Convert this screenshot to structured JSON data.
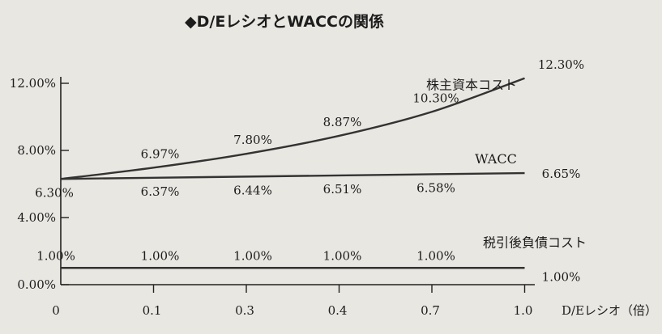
{
  "chart_data": {
    "type": "line",
    "title": "◆D/EレシオとWACCの関係",
    "xlabel": "D/Eレシオ（倍）",
    "ylabel": "",
    "categories": [
      "0",
      "0.1",
      "0.3",
      "0.4",
      "0.7",
      "1.0"
    ],
    "x": [
      0,
      0.1,
      0.3,
      0.4,
      0.7,
      1.0
    ],
    "ylim": [
      0,
      12
    ],
    "yticks": [
      "0.00%",
      "4.00%",
      "8.00%",
      "12.00%"
    ],
    "grid": false,
    "series": [
      {
        "name": "株主資本コスト",
        "values": [
          6.3,
          6.97,
          7.8,
          8.87,
          10.3,
          12.3
        ],
        "labels": [
          "",
          "6.97%",
          "7.80%",
          "8.87%",
          "10.30%",
          "12.30%"
        ],
        "color": "#333333"
      },
      {
        "name": "WACC",
        "values": [
          6.3,
          6.37,
          6.44,
          6.51,
          6.58,
          6.65
        ],
        "labels": [
          "6.30%",
          "6.37%",
          "6.44%",
          "6.51%",
          "6.58%",
          "6.65%"
        ],
        "color": "#333333"
      },
      {
        "name": "税引後負債コスト",
        "values": [
          1.0,
          1.0,
          1.0,
          1.0,
          1.0,
          1.0
        ],
        "labels": [
          "1.00%",
          "1.00%",
          "1.00%",
          "1.00%",
          "1.00%",
          "1.00%"
        ],
        "color": "#333333"
      }
    ]
  }
}
